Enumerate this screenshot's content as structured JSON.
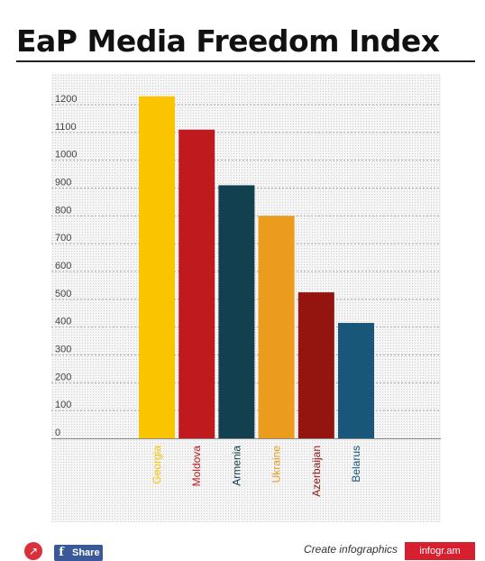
{
  "page": {
    "title": "EaP Media Freedom Index"
  },
  "chart_data": {
    "type": "bar",
    "title": "EaP Media Freedom Index",
    "categories": [
      "Georgia",
      "Moldova",
      "Armenia",
      "Ukraine",
      "Azerbaijan",
      "Belarus"
    ],
    "values": [
      1230,
      1110,
      910,
      800,
      525,
      415
    ],
    "colors": [
      "#fbc400",
      "#bf1b1f",
      "#12404e",
      "#ec9c1d",
      "#941410",
      "#18567a"
    ],
    "ylim": [
      0,
      1200
    ],
    "yticks": [
      0,
      100,
      200,
      300,
      400,
      500,
      600,
      700,
      800,
      900,
      1000,
      1100,
      1200
    ],
    "xlabel": "",
    "ylabel": "",
    "grid": true,
    "legend": "none",
    "label_orientation": "vertical"
  },
  "footer": {
    "share_icon": "share-icon",
    "facebook_icon": "f",
    "facebook_label": "Share",
    "create_link": "Create infographics",
    "brand": "infogr.am"
  }
}
